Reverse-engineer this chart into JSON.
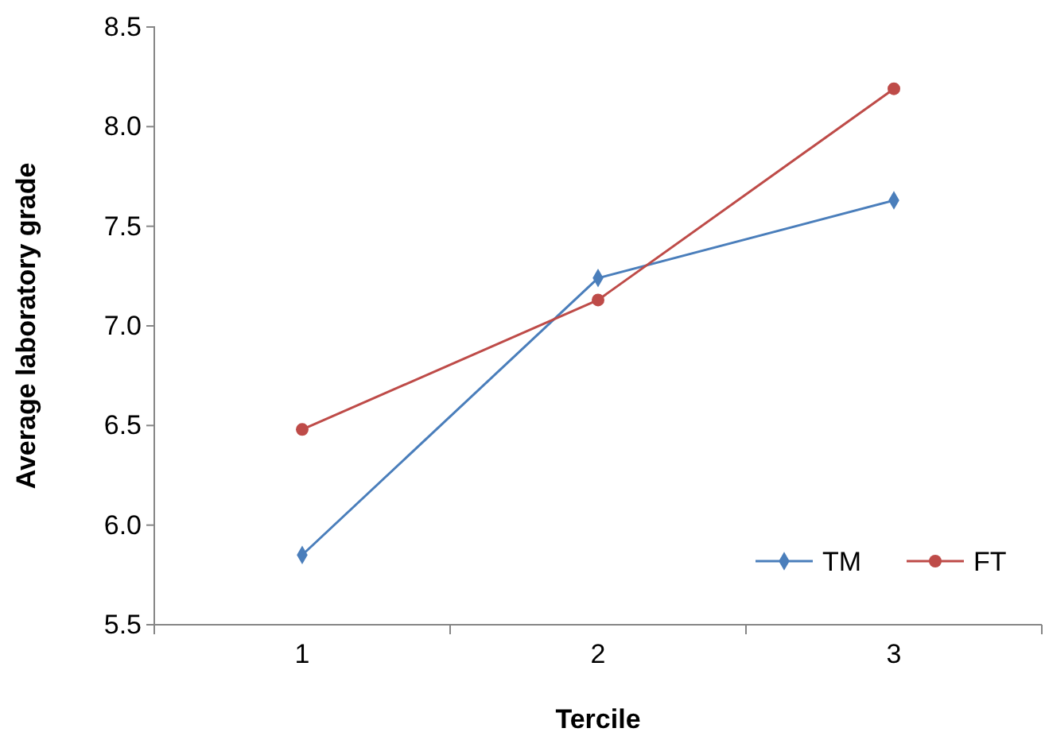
{
  "chart_data": {
    "type": "line",
    "xlabel": "Tercile",
    "ylabel": "Average laboratory grade",
    "categories": [
      "1",
      "2",
      "3"
    ],
    "series": [
      {
        "name": "TM",
        "color": "#4a7ebb",
        "marker": "diamond",
        "values": [
          5.85,
          7.24,
          7.63
        ]
      },
      {
        "name": "FT",
        "color": "#be4b48",
        "marker": "circle",
        "values": [
          6.48,
          7.13,
          8.19
        ]
      }
    ],
    "ylim": [
      5.5,
      8.5
    ],
    "yticks": [
      {
        "value": 5.5,
        "label": "5.5"
      },
      {
        "value": 6,
        "label": "6.0"
      },
      {
        "value": 6.5,
        "label": "6.5"
      },
      {
        "value": 7,
        "label": "7.0"
      },
      {
        "value": 7.5,
        "label": "7.5"
      },
      {
        "value": 8,
        "label": "8.0"
      },
      {
        "value": 8.5,
        "label": "8.5"
      }
    ],
    "grid": false,
    "legend": "bottom right",
    "line_style": "solid"
  }
}
